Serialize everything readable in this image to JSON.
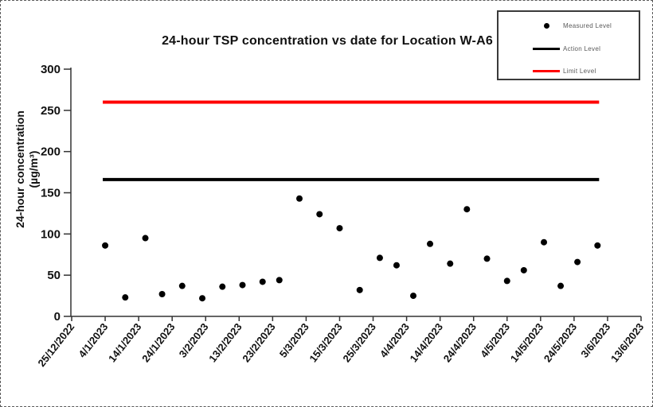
{
  "chart_data": {
    "type": "scatter",
    "title": "24-hour TSP concentration vs date for Location W-A6",
    "ylabel": "24-hour concentration",
    "ylabel_units": "(µg/m³)",
    "xlabel": "",
    "ylim": [
      0,
      300
    ],
    "yticks": [
      0,
      50,
      100,
      150,
      200,
      250,
      300
    ],
    "xticks": [
      "25/12/2022",
      "4/1/2023",
      "14/1/2023",
      "24/1/2023",
      "3/2/2023",
      "13/2/2023",
      "23/2/2023",
      "5/3/2023",
      "15/3/2023",
      "25/3/2023",
      "4/4/2023",
      "14/4/2023",
      "24/4/2023",
      "4/5/2023",
      "14/5/2023",
      "24/5/2023",
      "3/6/2023",
      "13/6/2023"
    ],
    "grid": "off",
    "legend": {
      "position": "top-right",
      "entries": [
        {
          "label": "Measured Level",
          "marker": "dot",
          "color": "#000000"
        },
        {
          "label": "Action Level",
          "marker": "line",
          "color": "#000000"
        },
        {
          "label": "Limit Level",
          "marker": "line",
          "color": "#ff0000"
        }
      ]
    },
    "series": [
      {
        "name": "Measured Level",
        "color": "#000000",
        "points": [
          {
            "date": "4/1/2023",
            "value": 86
          },
          {
            "date": "10/1/2023",
            "value": 23
          },
          {
            "date": "16/1/2023",
            "value": 95
          },
          {
            "date": "21/1/2023",
            "value": 27
          },
          {
            "date": "27/1/2023",
            "value": 37
          },
          {
            "date": "2/2/2023",
            "value": 22
          },
          {
            "date": "8/2/2023",
            "value": 36
          },
          {
            "date": "14/2/2023",
            "value": 38
          },
          {
            "date": "20/2/2023",
            "value": 42
          },
          {
            "date": "25/2/2023",
            "value": 44
          },
          {
            "date": "3/3/2023",
            "value": 143
          },
          {
            "date": "9/3/2023",
            "value": 124
          },
          {
            "date": "15/3/2023",
            "value": 107
          },
          {
            "date": "21/3/2023",
            "value": 32
          },
          {
            "date": "27/3/2023",
            "value": 71
          },
          {
            "date": "1/4/2023",
            "value": 62
          },
          {
            "date": "6/4/2023",
            "value": 25
          },
          {
            "date": "11/4/2023",
            "value": 88
          },
          {
            "date": "17/4/2023",
            "value": 64
          },
          {
            "date": "22/4/2023",
            "value": 130
          },
          {
            "date": "28/4/2023",
            "value": 70
          },
          {
            "date": "4/5/2023",
            "value": 43
          },
          {
            "date": "9/5/2023",
            "value": 56
          },
          {
            "date": "15/5/2023",
            "value": 90
          },
          {
            "date": "20/5/2023",
            "value": 37
          },
          {
            "date": "25/5/2023",
            "value": 66
          },
          {
            "date": "31/5/2023",
            "value": 86
          }
        ]
      }
    ],
    "reference_lines": [
      {
        "name": "Action Level",
        "value": 166,
        "color": "#000000"
      },
      {
        "name": "Limit Level",
        "value": 260,
        "color": "#ff0000"
      }
    ]
  }
}
